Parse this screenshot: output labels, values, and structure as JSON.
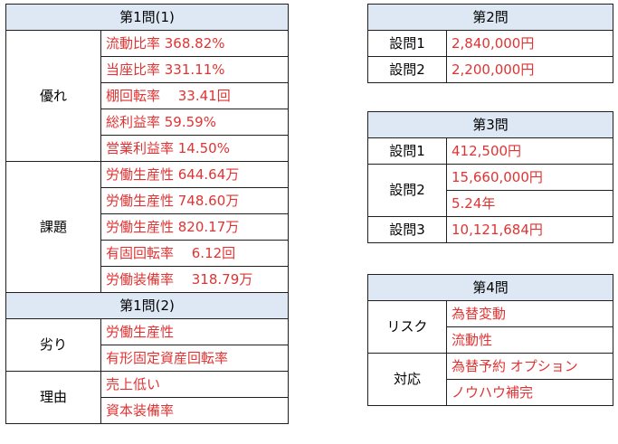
{
  "q1_1": {
    "title": "第1問(1)",
    "strengths": {
      "label": "優れ",
      "items": [
        "流動比率 368.82%",
        "当座比率 331.11%",
        "棚回転率　 33.41回",
        "総利益率 59.59%",
        "営業利益率 14.50%"
      ]
    },
    "issues": {
      "label": "課題",
      "items": [
        "労働生産性 644.64万",
        "労働生産性 748.60万",
        "労働生産性 820.17万",
        "有固回転率　 6.12回",
        "労働装備率　 318.79万"
      ]
    }
  },
  "q1_2": {
    "title": "第1問(2)",
    "weakness": {
      "label": "劣り",
      "items": [
        "労働生産性",
        "有形固定資産回転率"
      ]
    },
    "reason": {
      "label": "理由",
      "items": [
        "売上低い",
        "資本装備率"
      ]
    }
  },
  "q2": {
    "title": "第2問",
    "rows": [
      {
        "label": "設問1",
        "value": "2,840,000円"
      },
      {
        "label": "設問2",
        "value": "2,200,000円"
      }
    ]
  },
  "q3": {
    "title": "第3問",
    "row1": {
      "label": "設問1",
      "value": "412,500円"
    },
    "row2": {
      "label": "設問2",
      "values": [
        "15,660,000円",
        "5.24年"
      ]
    },
    "row3": {
      "label": "設問3",
      "value": "10,121,684円"
    }
  },
  "q4": {
    "title": "第4問",
    "risk": {
      "label": "リスク",
      "items": [
        "為替変動",
        "流動性"
      ]
    },
    "response": {
      "label": "対応",
      "items": [
        "為替予約 オプション",
        "ノウハウ補完"
      ]
    }
  }
}
